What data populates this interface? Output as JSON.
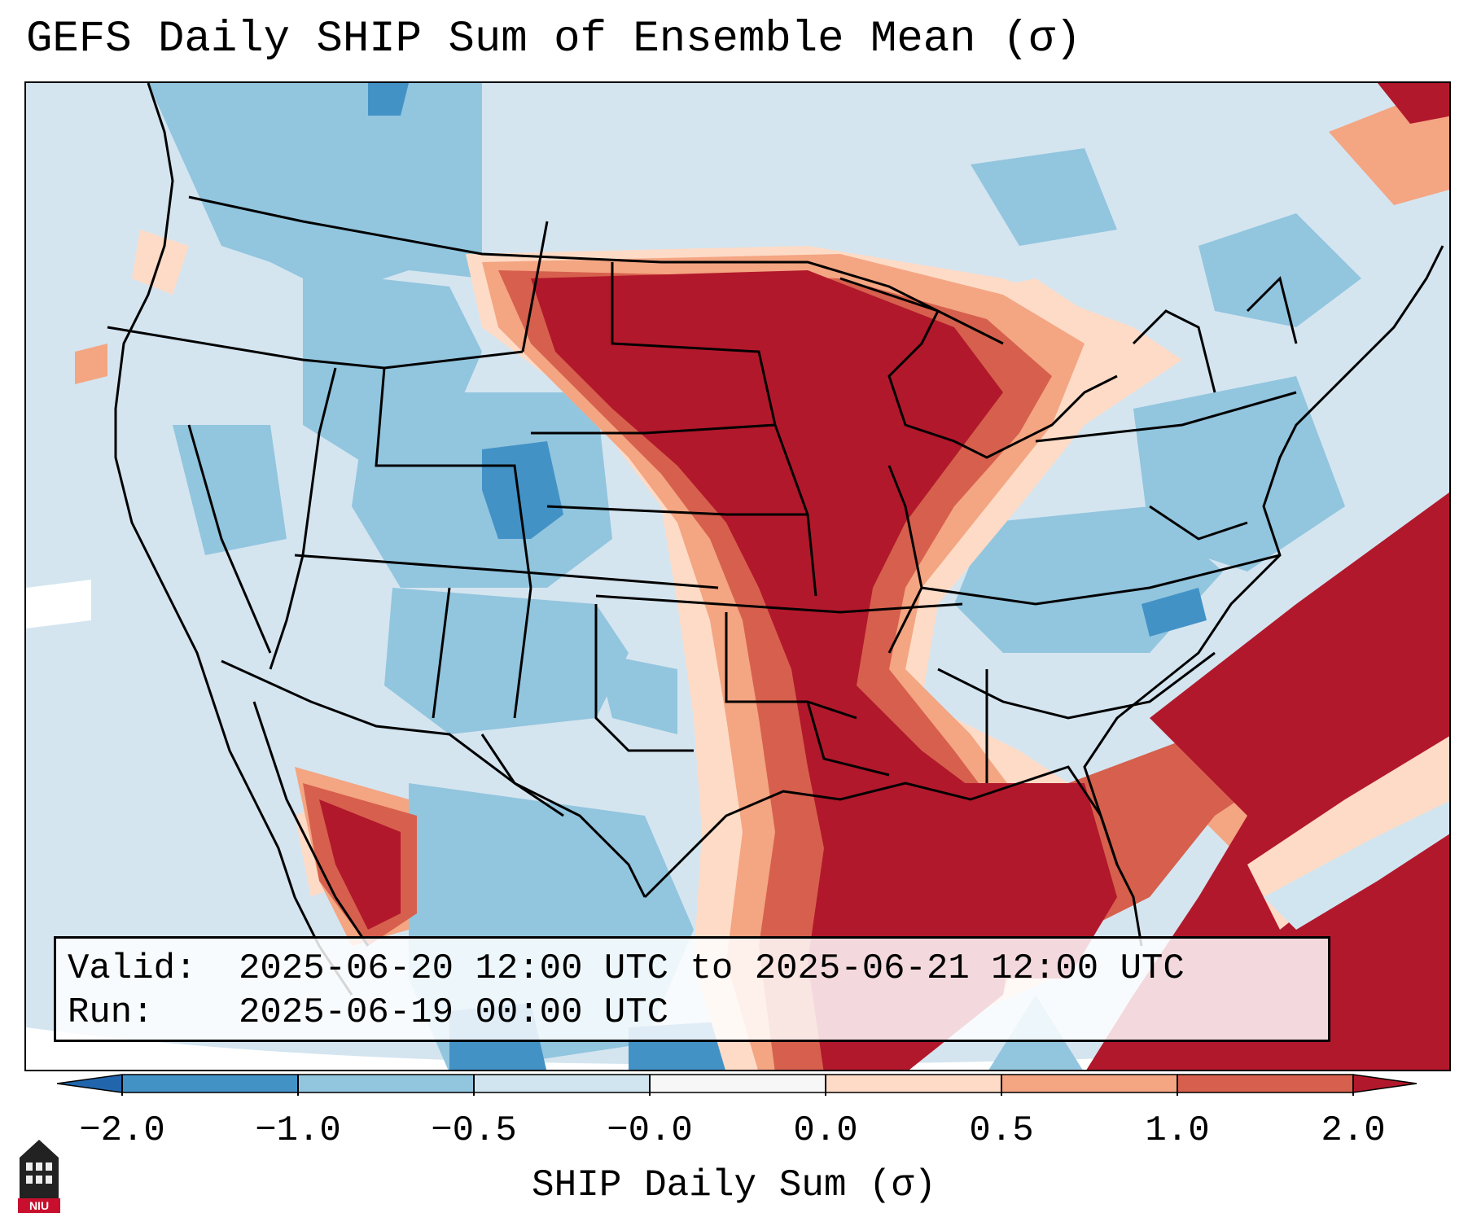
{
  "title": "GEFS Daily SHIP Sum of Ensemble Mean (σ)",
  "info": {
    "valid_label": "Valid:",
    "valid_value": "2025-06-20 12:00 UTC to 2025-06-21 12:00 UTC",
    "run_label": "Run:",
    "run_value": "2025-06-19 00:00 UTC"
  },
  "colorbar": {
    "label": "SHIP Daily Sum (σ)",
    "ticks": [
      "−2.0",
      "−1.0",
      "−0.5",
      "−0.0",
      "0.0",
      "0.5",
      "1.0",
      "2.0"
    ],
    "colors": [
      "#4292c6",
      "#92c5de",
      "#d1e5f0",
      "#f7f7f7",
      "#fddbc7",
      "#f4a582",
      "#d6604d",
      "#b2182b"
    ],
    "extend_low_color": "#2166ac",
    "extend_high_color": "#b2182b"
  },
  "logo": {
    "text": "NIU",
    "color": "#c8102e"
  }
}
